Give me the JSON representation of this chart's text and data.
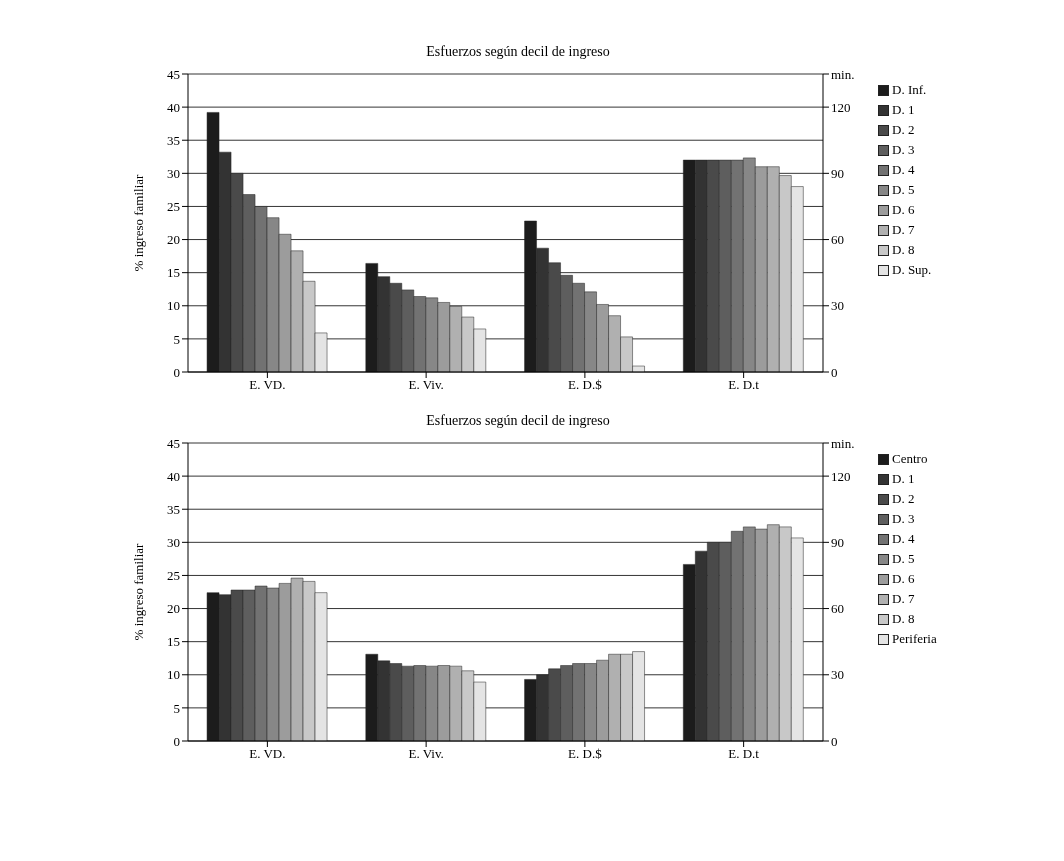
{
  "chart_data": [
    {
      "type": "bar",
      "title": "Esfuerzos según decil de ingreso",
      "ylabel": "% ingreso familiar",
      "categories": [
        "E. VD.",
        "E. Viv.",
        "E. D.$",
        "E. D.t"
      ],
      "ylim": [
        0,
        45
      ],
      "yticks": [
        0,
        5,
        10,
        15,
        20,
        25,
        30,
        35,
        40,
        45
      ],
      "y2lim": [
        0,
        135
      ],
      "y2ticks": [
        0,
        30,
        60,
        90,
        120,
        {
          "value": 135,
          "label": "min."
        }
      ],
      "grid": "y",
      "legend": "right",
      "series": [
        {
          "name": "D. Inf.",
          "color": "#1c1c1c",
          "values": [
            39.2,
            16.4,
            22.8,
            null
          ]
        },
        {
          "name": "D. 1",
          "color": "#333333",
          "values": [
            33.2,
            14.4,
            18.7,
            null
          ]
        },
        {
          "name": "D. 2",
          "color": "#4a4a4a",
          "values": [
            30,
            13.4,
            16.5,
            null
          ]
        },
        {
          "name": "D. 3",
          "color": "#5e5e5e",
          "values": [
            26.8,
            12.4,
            14.6,
            null
          ]
        },
        {
          "name": "D. 4",
          "color": "#727272",
          "values": [
            25,
            11.4,
            13.4,
            null
          ]
        },
        {
          "name": "D. 5",
          "color": "#878787",
          "values": [
            23.3,
            11.2,
            12.1,
            null
          ]
        },
        {
          "name": "D. 6",
          "color": "#9c9c9c",
          "values": [
            20.8,
            10.5,
            10.2,
            null
          ]
        },
        {
          "name": "D. 7",
          "color": "#b0b0b0",
          "values": [
            18.3,
            9.9,
            8.5,
            null
          ]
        },
        {
          "name": "D. 8",
          "color": "#c8c8c8",
          "values": [
            13.7,
            8.3,
            5.3,
            null
          ]
        },
        {
          "name": "D. Sup.",
          "color": "#e4e4e4",
          "values": [
            5.9,
            6.5,
            0.9,
            null
          ]
        },
        {
          "axis": "y2",
          "color": "#1c1c1c",
          "values": [
            null,
            null,
            null,
            96
          ]
        },
        {
          "axis": "y2",
          "color": "#333333",
          "values": [
            null,
            null,
            null,
            96
          ]
        },
        {
          "axis": "y2",
          "color": "#4a4a4a",
          "values": [
            null,
            null,
            null,
            96
          ]
        },
        {
          "axis": "y2",
          "color": "#5e5e5e",
          "values": [
            null,
            null,
            null,
            96
          ]
        },
        {
          "axis": "y2",
          "color": "#727272",
          "values": [
            null,
            null,
            null,
            96
          ]
        },
        {
          "axis": "y2",
          "color": "#878787",
          "values": [
            null,
            null,
            null,
            97
          ]
        },
        {
          "axis": "y2",
          "color": "#9c9c9c",
          "values": [
            null,
            null,
            null,
            93
          ]
        },
        {
          "axis": "y2",
          "color": "#b0b0b0",
          "values": [
            null,
            null,
            null,
            93
          ]
        },
        {
          "axis": "y2",
          "color": "#c8c8c8",
          "values": [
            null,
            null,
            null,
            89
          ]
        },
        {
          "axis": "y2",
          "color": "#e4e4e4",
          "values": [
            null,
            null,
            null,
            84
          ]
        }
      ]
    },
    {
      "type": "bar",
      "title": "Esfuerzos según decil de ingreso",
      "ylabel": "% ingreso familiar",
      "categories": [
        "E. VD.",
        "E. Viv.",
        "E. D.$",
        "E. D.t"
      ],
      "ylim": [
        0,
        45
      ],
      "yticks": [
        0,
        5,
        10,
        15,
        20,
        25,
        30,
        35,
        40,
        45
      ],
      "y2lim": [
        0,
        135
      ],
      "y2ticks": [
        0,
        30,
        60,
        90,
        120,
        {
          "value": 135,
          "label": "min."
        }
      ],
      "grid": "y",
      "legend": "right",
      "series": [
        {
          "name": "Centro",
          "color": "#1c1c1c",
          "values": [
            22.4,
            13.1,
            9.3,
            null
          ]
        },
        {
          "name": "D. 1",
          "color": "#333333",
          "values": [
            22.1,
            12.1,
            10,
            null
          ]
        },
        {
          "name": "D. 2",
          "color": "#4a4a4a",
          "values": [
            22.8,
            11.7,
            10.9,
            null
          ]
        },
        {
          "name": "D. 3",
          "color": "#5e5e5e",
          "values": [
            22.8,
            11.3,
            11.4,
            null
          ]
        },
        {
          "name": "D. 4",
          "color": "#727272",
          "values": [
            23.4,
            11.4,
            11.7,
            null
          ]
        },
        {
          "name": "D. 5",
          "color": "#878787",
          "values": [
            23.1,
            11.3,
            11.7,
            null
          ]
        },
        {
          "name": "D. 6",
          "color": "#9c9c9c",
          "values": [
            23.8,
            11.4,
            12.2,
            null
          ]
        },
        {
          "name": "D. 7",
          "color": "#b0b0b0",
          "values": [
            24.6,
            11.3,
            13.1,
            null
          ]
        },
        {
          "name": "D. 8",
          "color": "#c8c8c8",
          "values": [
            24.1,
            10.6,
            13.1,
            null
          ]
        },
        {
          "name": "Periferia",
          "color": "#e4e4e4",
          "values": [
            22.4,
            8.9,
            13.5,
            null
          ]
        },
        {
          "axis": "y2",
          "color": "#1c1c1c",
          "values": [
            null,
            null,
            null,
            80
          ]
        },
        {
          "axis": "y2",
          "color": "#333333",
          "values": [
            null,
            null,
            null,
            86
          ]
        },
        {
          "axis": "y2",
          "color": "#4a4a4a",
          "values": [
            null,
            null,
            null,
            90
          ]
        },
        {
          "axis": "y2",
          "color": "#5e5e5e",
          "values": [
            null,
            null,
            null,
            90
          ]
        },
        {
          "axis": "y2",
          "color": "#727272",
          "values": [
            null,
            null,
            null,
            95
          ]
        },
        {
          "axis": "y2",
          "color": "#878787",
          "values": [
            null,
            null,
            null,
            97
          ]
        },
        {
          "axis": "y2",
          "color": "#9c9c9c",
          "values": [
            null,
            null,
            null,
            96
          ]
        },
        {
          "axis": "y2",
          "color": "#b0b0b0",
          "values": [
            null,
            null,
            null,
            98
          ]
        },
        {
          "axis": "y2",
          "color": "#c8c8c8",
          "values": [
            null,
            null,
            null,
            97
          ]
        },
        {
          "axis": "y2",
          "color": "#e4e4e4",
          "values": [
            null,
            null,
            null,
            92
          ]
        }
      ]
    }
  ]
}
